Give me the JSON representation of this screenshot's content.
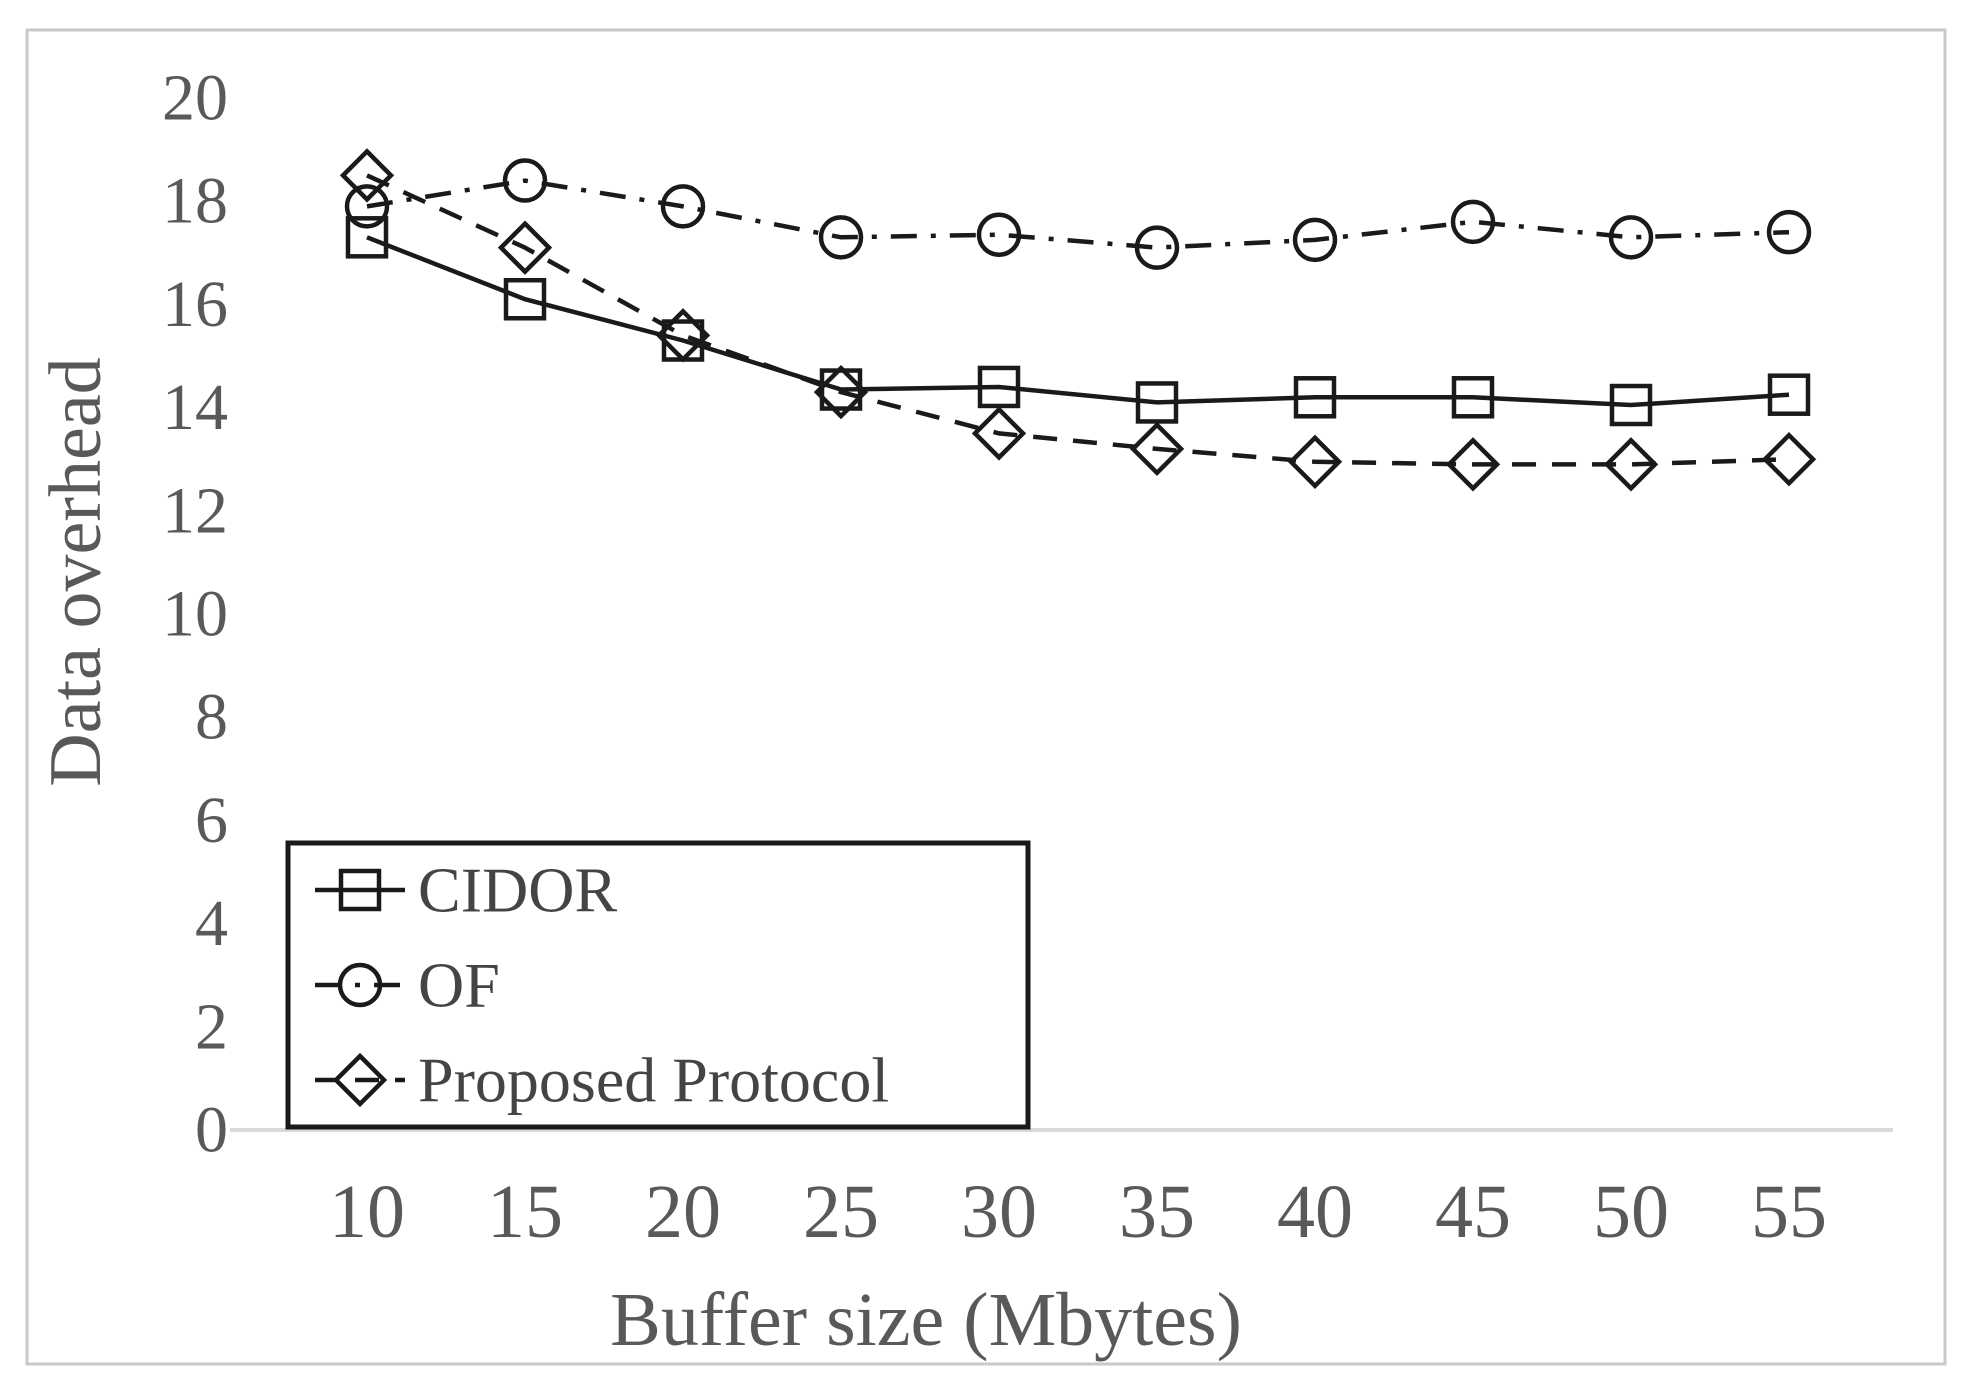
{
  "chart_data": {
    "type": "line",
    "title": "",
    "xlabel": "Buffer size (Mbytes)",
    "ylabel": "Data overhead",
    "x": [
      10,
      15,
      20,
      25,
      30,
      35,
      40,
      45,
      50,
      55
    ],
    "xlim": [
      10,
      55
    ],
    "ylim": [
      0,
      20
    ],
    "yticks": [
      0,
      2,
      4,
      6,
      8,
      10,
      12,
      14,
      16,
      18,
      20
    ],
    "xticks": [
      10,
      15,
      20,
      25,
      30,
      35,
      40,
      45,
      50,
      55
    ],
    "grid": false,
    "legend_position": "bottom-left",
    "series": [
      {
        "name": "CIDOR",
        "marker": "square",
        "line": "solid",
        "values": [
          17.3,
          16.1,
          15.3,
          14.35,
          14.4,
          14.1,
          14.2,
          14.2,
          14.05,
          14.25
        ]
      },
      {
        "name": "OF",
        "marker": "circle",
        "line": "dashdot",
        "values": [
          17.9,
          18.4,
          17.9,
          17.3,
          17.35,
          17.1,
          17.25,
          17.6,
          17.3,
          17.4
        ]
      },
      {
        "name": "Proposed Protocol",
        "marker": "diamond",
        "line": "dashed",
        "values": [
          18.5,
          17.1,
          15.4,
          14.3,
          13.5,
          13.2,
          12.95,
          12.9,
          12.9,
          13.0
        ]
      }
    ],
    "colors": {
      "stroke": "#1a1a1a",
      "text": "#595959",
      "axis_line": "#d9d9d9",
      "frame": "#c9c9c9",
      "background": "#ffffff"
    }
  }
}
